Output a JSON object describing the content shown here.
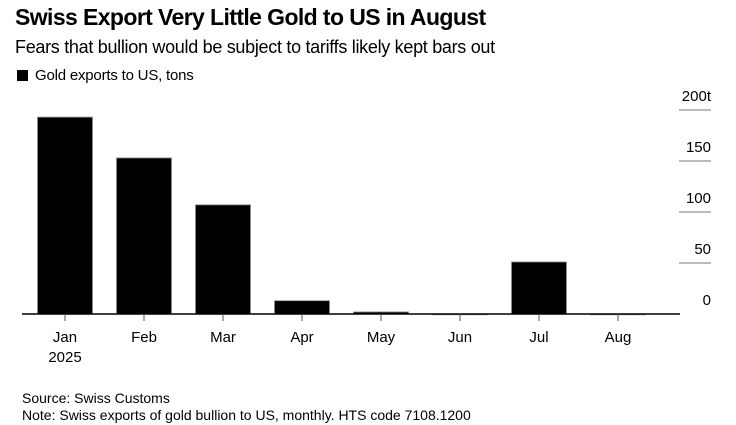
{
  "header": {
    "title": "Swiss Export Very Little Gold to US in August",
    "subtitle": "Fears that bullion would be subject to tariffs likely kept bars out"
  },
  "legend": {
    "label": "Gold exports to US, tons",
    "color": "#000000"
  },
  "footer": {
    "source": "Source: Swiss Customs",
    "note": "Note: Swiss exports of gold bullion to US, monthly. HTS code 7108.1200"
  },
  "chart_data": {
    "type": "bar",
    "title": "Swiss Export Very Little Gold to US in August",
    "subtitle": "Fears that bullion would be subject to tariffs likely kept bars out",
    "categories": [
      "Jan",
      "Feb",
      "Mar",
      "Apr",
      "May",
      "Jun",
      "Jul",
      "Aug"
    ],
    "category_sublabels": [
      "2025",
      "",
      "",
      "",
      "",
      "",
      "",
      ""
    ],
    "series": [
      {
        "name": "Gold exports to US, tons",
        "color": "#000000",
        "values": [
          193,
          153,
          107,
          13,
          2,
          0,
          51,
          0
        ]
      }
    ],
    "xlabel": "",
    "ylabel": "",
    "ylim": [
      0,
      200
    ],
    "yticks": [
      0,
      50,
      100,
      150,
      200
    ],
    "ytick_labels": [
      "0",
      "50",
      "100",
      "150",
      "200t"
    ],
    "y_axis_side": "right",
    "grid": false,
    "legend_position": "top-left"
  }
}
